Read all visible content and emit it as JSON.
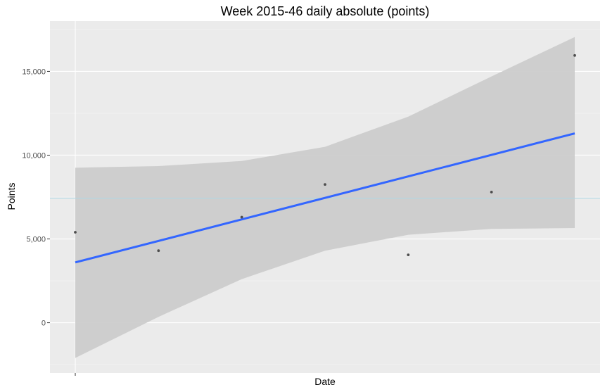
{
  "chart_data": {
    "type": "scatter",
    "title": "Week 2015-46 daily absolute (points)",
    "xlabel": "Date",
    "ylabel": "Points",
    "x_index": [
      1,
      2,
      3,
      4,
      5,
      6,
      7
    ],
    "points": [
      5400,
      4300,
      6300,
      8250,
      4050,
      7800,
      15950
    ],
    "y_ticks": [
      0,
      5000,
      10000,
      15000
    ],
    "y_tick_labels": [
      "0",
      "5,000",
      "10,000",
      "15,000"
    ],
    "ylim": [
      -3000,
      18000
    ],
    "mean_line": 7430,
    "trend": {
      "start": 3600,
      "end": 11300
    },
    "confidence_band": {
      "x": [
        1,
        2,
        3,
        4,
        5,
        6,
        7
      ],
      "upper": [
        9250,
        9350,
        9650,
        10500,
        12300,
        14700,
        17050
      ],
      "lower": [
        -2100,
        350,
        2600,
        4300,
        5250,
        5600,
        5650
      ]
    },
    "grid": true,
    "colors": {
      "panel": "#ebebeb",
      "grid_major": "#ffffff",
      "grid_minor": "#f5f5f5",
      "trend": "#3366ff",
      "band": "#cccccc",
      "points": "#4d4d4d",
      "mean_line": "#add8e6"
    }
  }
}
